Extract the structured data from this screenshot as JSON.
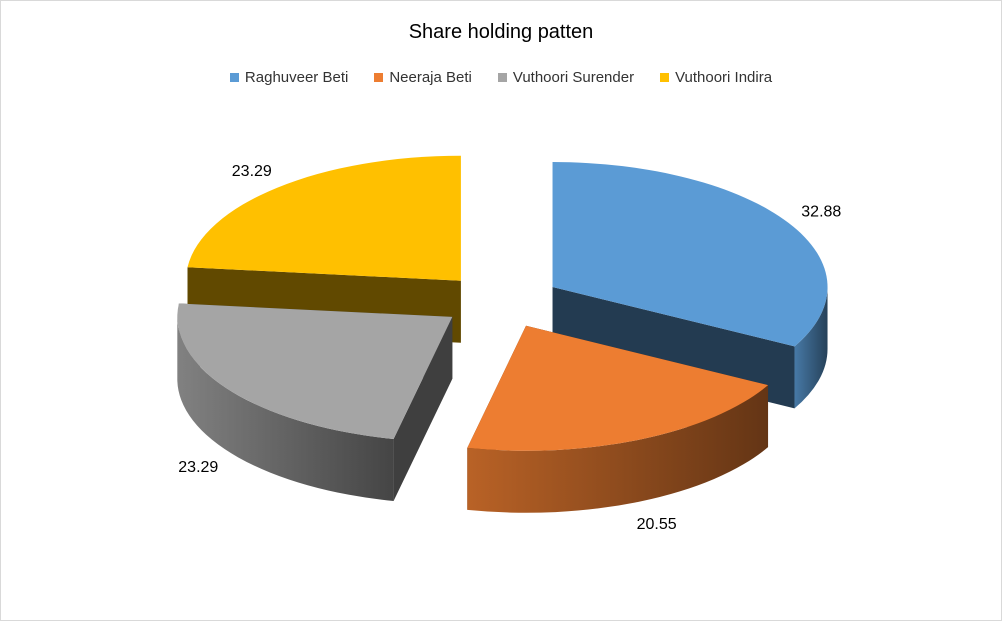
{
  "chart_data": {
    "type": "pie",
    "style": "3d-exploded",
    "title": "Share holding patten",
    "legend_position": "top",
    "slices": [
      {
        "label": "Raghuveer Beti",
        "value": 32.88,
        "color": "#5B9BD5"
      },
      {
        "label": "Neeraja Beti",
        "value": 20.55,
        "color": "#ED7D31"
      },
      {
        "label": "Vuthoori Surender",
        "value": 23.29,
        "color": "#A5A5A5"
      },
      {
        "label": "Vuthoori Indira",
        "value": 23.29,
        "color": "#FFC000"
      }
    ]
  }
}
